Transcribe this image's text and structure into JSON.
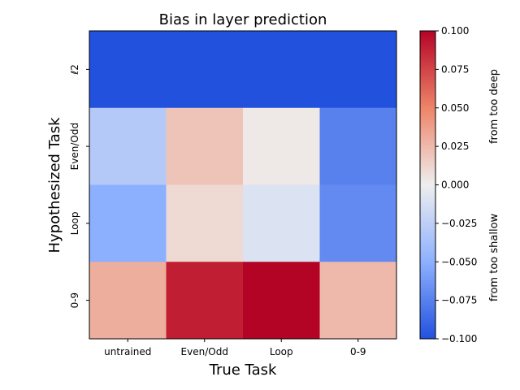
{
  "chart_data": {
    "type": "heatmap",
    "title": "Bias in layer prediction",
    "xlabel": "True Task",
    "ylabel": "Hypothesized Task",
    "x_categories": [
      "untrained",
      "Even/Odd",
      "Loop",
      "0-9"
    ],
    "y_categories": [
      "ℓ2",
      "Even/Odd",
      "Loop",
      "0-9"
    ],
    "values": [
      [
        -0.1,
        -0.1,
        -0.1,
        -0.1
      ],
      [
        -0.03,
        0.02,
        0.003,
        -0.075
      ],
      [
        -0.05,
        0.01,
        -0.01,
        -0.07
      ],
      [
        0.03,
        0.09,
        0.1,
        0.025
      ]
    ],
    "colorbar": {
      "cmap": "coolwarm",
      "range": [
        -0.1,
        0.1
      ],
      "ticks": [
        "0.100",
        "0.075",
        "0.050",
        "0.025",
        "0.000",
        "−0.025",
        "−0.050",
        "−0.075",
        "−0.100"
      ],
      "label_upper": "from too deep",
      "label_lower": "from too shallow"
    }
  }
}
